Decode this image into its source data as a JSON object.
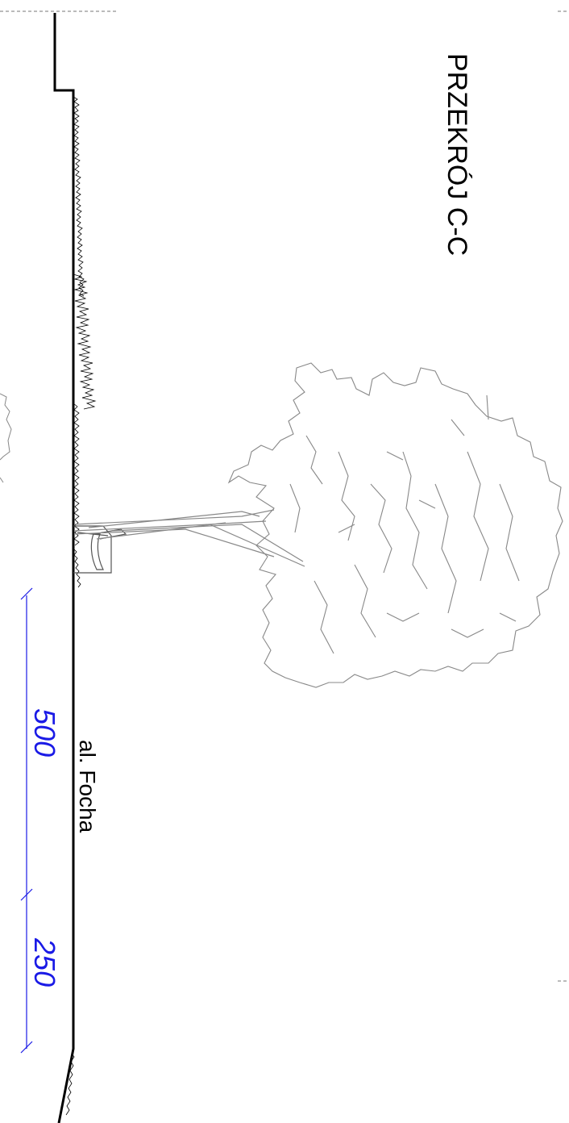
{
  "drawing": {
    "title": "PRZEKRÓJ C-C",
    "street_label": "al. Focha",
    "dimensions": [
      {
        "value": "500"
      },
      {
        "value": "250"
      }
    ],
    "colors": {
      "line": "#000000",
      "dimension": "#1a1ae6",
      "tree": "#888888",
      "dashed": "#777777"
    }
  }
}
